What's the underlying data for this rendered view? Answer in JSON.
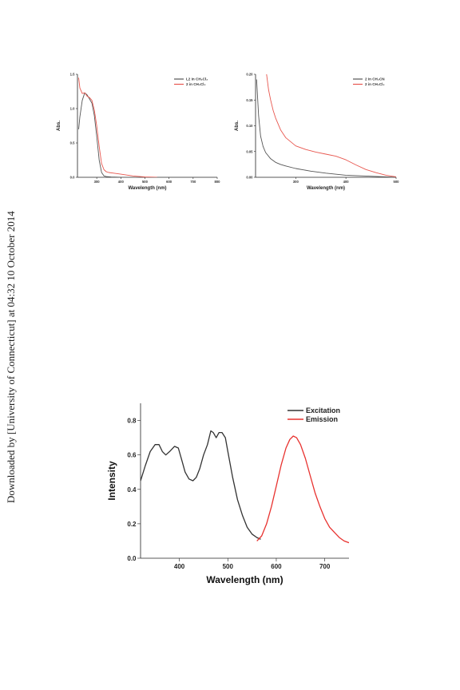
{
  "watermark": "Downloaded by [University of Connecticut] at 04:32 10 October 2014",
  "chart_data": [
    {
      "type": "line",
      "xlabel": "Wavelength (nm)",
      "ylabel": "Abs.",
      "xlim": [
        220,
        800
      ],
      "ylim": [
        0,
        1.5
      ],
      "xticks": [
        "300",
        "400",
        "500",
        "600",
        "700",
        "800"
      ],
      "yticks": [
        "0.0",
        "0.5",
        "1.0",
        "1.5"
      ],
      "legend_position": "top-right",
      "series": [
        {
          "name": "L2 in CH₂Cl₂",
          "color": "#555555",
          "x": [
            225,
            230,
            240,
            250,
            260,
            270,
            280,
            290,
            300,
            310,
            320,
            330,
            340,
            360,
            400
          ],
          "y": [
            0.7,
            0.88,
            1.12,
            1.23,
            1.2,
            1.14,
            1.08,
            0.9,
            0.6,
            0.25,
            0.07,
            0.02,
            0.01,
            0.005,
            0.0
          ]
        },
        {
          "name": "2 in CH₂Cl₂",
          "color": "#e8574f",
          "x": [
            225,
            230,
            240,
            250,
            260,
            270,
            280,
            290,
            300,
            310,
            320,
            330,
            340,
            350,
            370,
            400,
            450,
            500,
            550
          ],
          "y": [
            1.45,
            1.3,
            1.22,
            1.23,
            1.18,
            1.16,
            1.12,
            0.98,
            0.75,
            0.45,
            0.2,
            0.11,
            0.08,
            0.07,
            0.06,
            0.045,
            0.02,
            0.005,
            0.0
          ]
        }
      ]
    },
    {
      "type": "line",
      "xlabel": "Wavelength (nm)",
      "ylabel": "Abs.",
      "xlim": [
        220,
        500
      ],
      "ylim": [
        0,
        0.2
      ],
      "xticks": [
        "300",
        "400",
        "500"
      ],
      "yticks": [
        "0.00",
        "0.05",
        "0.10",
        "0.15",
        "0.20"
      ],
      "legend_position": "top-right",
      "series": [
        {
          "name": "2 in CH₃CN",
          "color": "#555555",
          "x": [
            222,
            226,
            230,
            235,
            240,
            250,
            260,
            270,
            280,
            300,
            330,
            360,
            400,
            450,
            500
          ],
          "y": [
            0.19,
            0.12,
            0.08,
            0.06,
            0.048,
            0.036,
            0.029,
            0.025,
            0.022,
            0.017,
            0.012,
            0.008,
            0.004,
            0.002,
            0.0
          ]
        },
        {
          "name": "2 in CH₂Cl₂",
          "color": "#e8574f",
          "x": [
            242,
            246,
            250,
            255,
            260,
            270,
            280,
            300,
            320,
            340,
            360,
            380,
            400,
            420,
            440,
            460,
            480,
            500
          ],
          "y": [
            0.2,
            0.17,
            0.15,
            0.13,
            0.115,
            0.092,
            0.077,
            0.061,
            0.054,
            0.049,
            0.045,
            0.041,
            0.034,
            0.024,
            0.015,
            0.009,
            0.004,
            0.001
          ]
        }
      ]
    },
    {
      "type": "line",
      "xlabel": "Wavelength (nm)",
      "ylabel": "Intensity",
      "xlim": [
        320,
        750
      ],
      "ylim": [
        0,
        0.9
      ],
      "xticks": [
        "400",
        "500",
        "600",
        "700"
      ],
      "yticks": [
        "0.0",
        "0.2",
        "0.4",
        "0.6",
        "0.8"
      ],
      "legend_position": "top-right",
      "series": [
        {
          "name": "Excitation",
          "color": "#333333",
          "x": [
            320,
            330,
            340,
            350,
            358,
            365,
            372,
            380,
            390,
            398,
            405,
            412,
            420,
            428,
            435,
            442,
            450,
            458,
            465,
            470,
            476,
            482,
            488,
            495,
            500,
            510,
            520,
            530,
            540,
            550,
            560,
            568
          ],
          "y": [
            0.45,
            0.54,
            0.62,
            0.66,
            0.66,
            0.62,
            0.6,
            0.62,
            0.65,
            0.64,
            0.57,
            0.5,
            0.46,
            0.45,
            0.47,
            0.52,
            0.6,
            0.66,
            0.74,
            0.73,
            0.7,
            0.73,
            0.73,
            0.7,
            0.62,
            0.47,
            0.34,
            0.25,
            0.18,
            0.14,
            0.12,
            0.11
          ]
        },
        {
          "name": "Emission",
          "color": "#e8322f",
          "x": [
            560,
            570,
            580,
            590,
            600,
            610,
            620,
            628,
            635,
            642,
            650,
            660,
            670,
            680,
            690,
            700,
            710,
            720,
            730,
            740,
            750
          ],
          "y": [
            0.1,
            0.13,
            0.2,
            0.3,
            0.42,
            0.54,
            0.64,
            0.69,
            0.71,
            0.7,
            0.66,
            0.58,
            0.48,
            0.38,
            0.3,
            0.23,
            0.18,
            0.15,
            0.12,
            0.1,
            0.09
          ]
        }
      ]
    }
  ]
}
